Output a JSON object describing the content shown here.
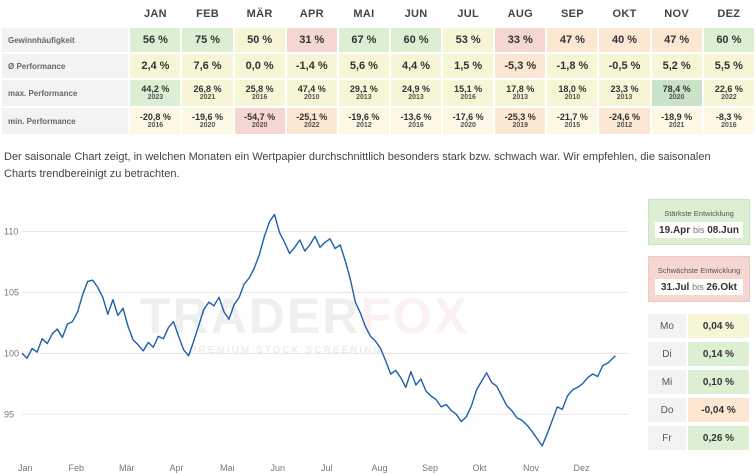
{
  "table": {
    "months": [
      "JAN",
      "FEB",
      "MÄR",
      "APR",
      "MAI",
      "JUN",
      "JUL",
      "AUG",
      "SEP",
      "OKT",
      "NOV",
      "DEZ"
    ],
    "rows": {
      "winfreq": {
        "label": "Gewinnhäufigkeit",
        "values": [
          "56 %",
          "75 %",
          "50 %",
          "31 %",
          "67 %",
          "60 %",
          "53 %",
          "33 %",
          "47 %",
          "40 %",
          "47 %",
          "60 %"
        ],
        "colors": [
          "#dcefd2",
          "#dcefd2",
          "#f6f5d6",
          "#f5d6d1",
          "#dcefd2",
          "#dcefd2",
          "#f6f5d6",
          "#f5d6d1",
          "#fbe7d2",
          "#fbe7d2",
          "#fbe7d2",
          "#dcefd2"
        ]
      },
      "perf": {
        "label": "Ø Performance",
        "values": [
          "2,4 %",
          "7,6 %",
          "0,0 %",
          "-1,4 %",
          "5,6 %",
          "4,4 %",
          "1,5 %",
          "-5,3 %",
          "-1,8 %",
          "-0,5 %",
          "5,2 %",
          "5,5 %"
        ],
        "colors": [
          "#f6f5d6",
          "#f6f5d6",
          "#f6f5d6",
          "#f6f5d6",
          "#f6f5d6",
          "#f6f5d6",
          "#f6f5d6",
          "#fbe7d2",
          "#f6f5d6",
          "#f6f5d6",
          "#f6f5d6",
          "#f6f5d6"
        ]
      },
      "max": {
        "label": "max. Performance",
        "values": [
          "44,2 %",
          "26,8 %",
          "25,8 %",
          "47,4 %",
          "29,1 %",
          "24,9 %",
          "15,1 %",
          "17,8 %",
          "18,0 %",
          "23,3 %",
          "78,4 %",
          "22,6 %"
        ],
        "years": [
          "2023",
          "2021",
          "2016",
          "2010",
          "2013",
          "2013",
          "2016",
          "2013",
          "2010",
          "2013",
          "2020",
          "2022"
        ],
        "colors": [
          "#dcefd2",
          "#f6f5d6",
          "#f6f5d6",
          "#f6f5d6",
          "#f6f5d6",
          "#f6f5d6",
          "#f6f5d6",
          "#f6f5d6",
          "#f6f5d6",
          "#f6f5d6",
          "#c8e3c8",
          "#f6f5d6"
        ]
      },
      "min": {
        "label": "min. Performance",
        "values": [
          "-20,8 %",
          "-19,6 %",
          "-54,7 %",
          "-25,1 %",
          "-19,6 %",
          "-13,6 %",
          "-17,6 %",
          "-25,3 %",
          "-21,7 %",
          "-24,6 %",
          "-18,9 %",
          "-8,3 %"
        ],
        "years": [
          "2016",
          "2020",
          "2020",
          "2022",
          "2012",
          "2016",
          "2020",
          "2019",
          "2015",
          "2012",
          "2021",
          "2016"
        ],
        "colors": [
          "#fcf8e4",
          "#fcf8e4",
          "#f5d6d1",
          "#fbe7d2",
          "#fcf8e4",
          "#fcf8e4",
          "#fcf8e4",
          "#fbe7d2",
          "#fcf8e4",
          "#fbe7d2",
          "#fcf8e4",
          "#fcf8e4"
        ]
      }
    }
  },
  "description": "Der saisonale Chart zeigt, in welchen Monaten ein Wertpapier durchschnittlich besonders stark bzw. schwach war. Wir empfehlen, die saisonalen Charts trendbereinigt zu betrachten.",
  "watermark": {
    "brand_a": "TRADER",
    "brand_b": "FOX",
    "tagline": "PREMIUM STOCK SCREENING"
  },
  "chart_data": {
    "type": "line",
    "title": "",
    "xlabel": "",
    "ylabel": "",
    "ylim": [
      91,
      112.5
    ],
    "yticks": [
      95,
      100,
      105,
      110
    ],
    "x_tick_labels": [
      "Jan",
      "Feb",
      "Mär",
      "Apr",
      "Mai",
      "Jun",
      "Jul",
      "Aug",
      "Sep",
      "Okt",
      "Nov",
      "Dez"
    ],
    "line_color": "#1f5fa8",
    "grid": "horizontal",
    "series": [
      {
        "x": [
          0,
          0.1,
          0.2,
          0.3,
          0.4,
          0.5,
          0.6,
          0.7,
          0.8,
          0.9,
          1.0,
          1.1,
          1.2,
          1.3,
          1.4,
          1.5,
          1.6,
          1.7,
          1.8,
          1.9,
          2.0,
          2.1,
          2.2,
          2.3,
          2.4,
          2.5,
          2.6,
          2.7,
          2.8,
          2.9,
          3.0,
          3.1,
          3.2,
          3.3,
          3.4,
          3.5,
          3.6,
          3.7,
          3.8,
          3.9,
          4.0,
          4.1,
          4.2,
          4.3,
          4.4,
          4.5,
          4.6,
          4.7,
          4.8,
          4.9,
          5.0,
          5.1,
          5.2,
          5.3,
          5.4,
          5.5,
          5.6,
          5.7,
          5.8,
          5.9,
          6.0,
          6.1,
          6.2,
          6.3,
          6.4,
          6.5,
          6.6,
          6.7,
          6.8,
          6.9,
          7.0,
          7.1,
          7.2,
          7.3,
          7.4,
          7.5,
          7.6,
          7.7,
          7.8,
          7.9,
          8.0,
          8.1,
          8.2,
          8.3,
          8.4,
          8.5,
          8.6,
          8.7,
          8.8,
          8.9,
          9.0,
          9.1,
          9.2,
          9.3,
          9.4,
          9.5,
          9.6,
          9.7,
          9.8,
          9.9,
          10.0,
          10.1,
          10.2,
          10.3,
          10.4,
          10.5,
          10.6,
          10.7,
          10.8,
          10.9,
          11.0,
          11.1,
          11.2,
          11.3,
          11.4,
          11.5,
          11.6,
          11.75
        ],
        "values": [
          100.0,
          99.6,
          100.4,
          100.1,
          101.2,
          100.8,
          101.6,
          102.0,
          101.3,
          102.4,
          102.6,
          103.4,
          104.8,
          105.9,
          106.0,
          105.4,
          104.6,
          103.2,
          104.4,
          103.1,
          103.7,
          102.2,
          101.1,
          100.7,
          100.2,
          100.9,
          100.5,
          101.4,
          101.2,
          102.1,
          102.6,
          101.4,
          100.3,
          99.8,
          101.0,
          102.3,
          103.6,
          104.2,
          103.9,
          104.6,
          103.4,
          102.8,
          104.0,
          104.6,
          105.7,
          106.2,
          107.0,
          108.1,
          109.6,
          110.8,
          111.4,
          109.9,
          109.1,
          108.2,
          108.7,
          109.3,
          108.4,
          108.9,
          109.6,
          108.7,
          109.1,
          109.4,
          108.6,
          108.9,
          107.6,
          106.1,
          104.2,
          103.3,
          102.2,
          101.4,
          101.0,
          100.4,
          99.4,
          98.3,
          98.6,
          98.0,
          97.2,
          98.5,
          97.4,
          97.9,
          96.9,
          96.5,
          96.2,
          95.6,
          95.8,
          95.3,
          95.0,
          94.4,
          94.8,
          95.7,
          97.0,
          97.7,
          98.4,
          97.6,
          97.3,
          96.5,
          95.7,
          95.3,
          94.7,
          94.5,
          94.1,
          93.6,
          93.0,
          92.4,
          93.4,
          94.5,
          95.6,
          95.4,
          96.5,
          97.0,
          97.2,
          97.5,
          98.0,
          98.3,
          98.1,
          99.0,
          99.2,
          99.8
        ]
      }
    ]
  },
  "best": {
    "title": "Stärkste Entwicklung",
    "from": "19.Apr",
    "sep": "bis",
    "to": "08.Jun"
  },
  "worst": {
    "title": "Schwächste Entwicklung",
    "from": "31.Jul",
    "sep": "bis",
    "to": "26.Okt"
  },
  "weekdays": [
    {
      "day": "Mo",
      "value": "0,04 %",
      "color": "#f6f5d6"
    },
    {
      "day": "Di",
      "value": "0,14 %",
      "color": "#dcefd2"
    },
    {
      "day": "Mi",
      "value": "0,10 %",
      "color": "#dcefd2"
    },
    {
      "day": "Do",
      "value": "-0,04 %",
      "color": "#fbe7d2"
    },
    {
      "day": "Fr",
      "value": "0,26 %",
      "color": "#dcefd2"
    }
  ]
}
